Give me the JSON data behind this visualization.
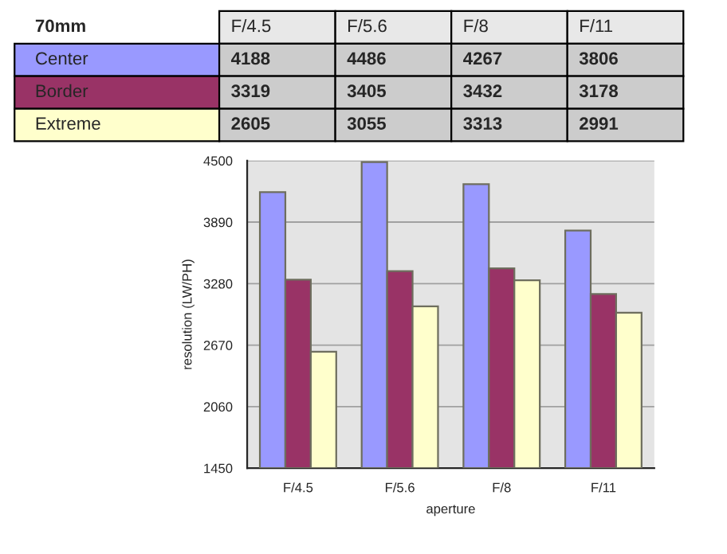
{
  "chart_data": {
    "type": "bar",
    "title": "70mm",
    "xlabel": "aperture",
    "ylabel": "resolution (LW/PH)",
    "categories": [
      "F/4.5",
      "F/5.6",
      "F/8",
      "F/11"
    ],
    "series": [
      {
        "name": "Center",
        "color": "#9999ff",
        "values": [
          4188,
          4486,
          4267,
          3806
        ]
      },
      {
        "name": "Border",
        "color": "#993366",
        "values": [
          3319,
          3405,
          3432,
          3178
        ]
      },
      {
        "name": "Extreme",
        "color": "#ffffcc",
        "values": [
          2605,
          3055,
          3313,
          2991
        ]
      }
    ],
    "ylim": [
      1450,
      4500
    ],
    "yticks": [
      1450,
      2060,
      2670,
      3280,
      3890,
      4500
    ],
    "grid": "y",
    "data_labels": true
  }
}
